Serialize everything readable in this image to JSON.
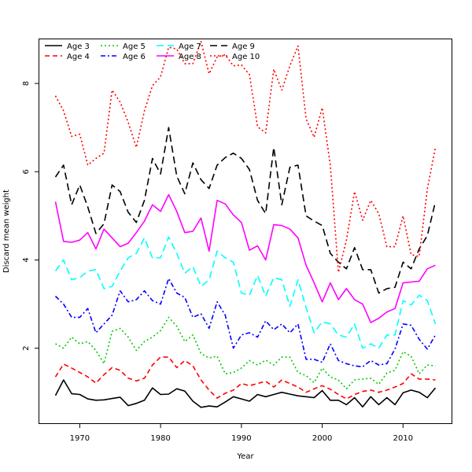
{
  "chart_data": {
    "type": "line",
    "title": "",
    "xlabel": "Year",
    "ylabel": "Discard mean weight",
    "xlim": [
      1965,
      2016
    ],
    "ylim": [
      0.3,
      9.0
    ],
    "xticks": [
      1970,
      1980,
      1990,
      2000,
      2010
    ],
    "yticks": [
      2,
      4,
      6,
      8
    ],
    "legend_position": "top-left",
    "x": [
      1967,
      1968,
      1969,
      1970,
      1971,
      1972,
      1973,
      1974,
      1975,
      1976,
      1977,
      1978,
      1979,
      1980,
      1981,
      1982,
      1983,
      1984,
      1985,
      1986,
      1987,
      1988,
      1989,
      1990,
      1991,
      1992,
      1993,
      1994,
      1995,
      1996,
      1997,
      1998,
      1999,
      2000,
      2001,
      2002,
      2003,
      2004,
      2005,
      2006,
      2007,
      2008,
      2009,
      2010,
      2011,
      2012,
      2013,
      2014
    ],
    "series": [
      {
        "name": "Age 3",
        "color": "#000000",
        "dash": "solid",
        "values": [
          0.93,
          1.28,
          0.97,
          0.95,
          0.85,
          0.82,
          0.83,
          0.86,
          0.89,
          0.7,
          0.75,
          0.82,
          1.1,
          0.95,
          0.96,
          1.08,
          1.03,
          0.8,
          0.66,
          0.69,
          0.67,
          0.78,
          0.9,
          0.85,
          0.8,
          0.95,
          0.9,
          0.95,
          1.0,
          0.96,
          0.92,
          0.9,
          0.88,
          1.04,
          0.82,
          0.82,
          0.72,
          0.88,
          0.67,
          0.9,
          0.72,
          0.88,
          0.72,
          0.99,
          1.05,
          1.0,
          0.88,
          1.1
        ]
      },
      {
        "name": "Age 4",
        "color": "#ff0000",
        "dash": "dashed",
        "values": [
          1.35,
          1.64,
          1.55,
          1.45,
          1.35,
          1.21,
          1.4,
          1.56,
          1.5,
          1.32,
          1.26,
          1.32,
          1.62,
          1.8,
          1.8,
          1.56,
          1.72,
          1.6,
          1.28,
          1.05,
          0.87,
          0.98,
          1.05,
          1.2,
          1.15,
          1.2,
          1.25,
          1.12,
          1.28,
          1.2,
          1.12,
          1.0,
          1.08,
          1.15,
          1.07,
          0.95,
          0.85,
          0.95,
          1.02,
          1.05,
          1.0,
          1.05,
          1.12,
          1.2,
          1.42,
          1.3,
          1.3,
          1.28
        ]
      },
      {
        "name": "Age 5",
        "color": "#00cc00",
        "dash": "dotted",
        "values": [
          2.1,
          2.0,
          2.25,
          2.1,
          2.15,
          1.95,
          1.65,
          2.38,
          2.45,
          2.25,
          1.95,
          2.15,
          2.25,
          2.4,
          2.7,
          2.5,
          2.15,
          2.3,
          1.88,
          1.78,
          1.82,
          1.42,
          1.45,
          1.55,
          1.72,
          1.62,
          1.73,
          1.62,
          1.8,
          1.8,
          1.45,
          1.38,
          1.22,
          1.55,
          1.35,
          1.28,
          1.08,
          1.28,
          1.3,
          1.32,
          1.18,
          1.44,
          1.5,
          1.92,
          1.82,
          1.42,
          1.62,
          1.6
        ]
      },
      {
        "name": "Age 6",
        "color": "#0000ff",
        "dash": "dashdot",
        "values": [
          3.18,
          3.0,
          2.7,
          2.7,
          2.9,
          2.35,
          2.55,
          2.75,
          3.3,
          3.05,
          3.1,
          3.3,
          3.08,
          3.0,
          3.58,
          3.25,
          3.15,
          2.7,
          2.78,
          2.45,
          3.05,
          2.75,
          2.0,
          2.3,
          2.35,
          2.25,
          2.62,
          2.42,
          2.55,
          2.35,
          2.55,
          1.75,
          1.75,
          1.68,
          2.1,
          1.72,
          1.65,
          1.6,
          1.58,
          1.72,
          1.62,
          1.65,
          1.98,
          2.55,
          2.52,
          2.2,
          1.98,
          2.3
        ]
      },
      {
        "name": "Age 7",
        "color": "#00ffff",
        "dash": "longdash",
        "values": [
          3.75,
          4.0,
          3.55,
          3.6,
          3.75,
          3.78,
          3.35,
          3.4,
          3.75,
          4.05,
          4.15,
          4.5,
          4.05,
          4.05,
          4.52,
          4.15,
          3.7,
          3.85,
          3.4,
          3.55,
          4.2,
          4.05,
          3.95,
          3.25,
          3.2,
          3.65,
          3.18,
          3.6,
          3.55,
          2.95,
          3.55,
          2.92,
          2.35,
          2.6,
          2.55,
          2.3,
          2.25,
          2.55,
          2.0,
          2.1,
          2.0,
          2.3,
          2.3,
          3.08,
          2.98,
          3.2,
          3.08,
          2.55
        ]
      },
      {
        "name": "Age 8",
        "color": "#ff00ff",
        "dash": "solid",
        "values": [
          5.32,
          4.42,
          4.4,
          4.45,
          4.62,
          4.25,
          4.7,
          4.5,
          4.3,
          4.38,
          4.62,
          4.88,
          5.25,
          5.1,
          5.48,
          5.1,
          4.62,
          4.65,
          4.95,
          4.2,
          5.35,
          5.27,
          5.02,
          4.85,
          4.22,
          4.32,
          4.0,
          4.8,
          4.78,
          4.7,
          4.5,
          3.88,
          3.48,
          3.05,
          3.48,
          3.1,
          3.35,
          3.1,
          3.0,
          2.58,
          2.68,
          2.82,
          2.9,
          3.48,
          3.5,
          3.52,
          3.8,
          3.88
        ]
      },
      {
        "name": "Age 9",
        "color": "#000000",
        "dash": "longdash",
        "values": [
          5.88,
          6.15,
          5.25,
          5.7,
          5.2,
          4.6,
          4.82,
          5.7,
          5.55,
          5.08,
          4.85,
          5.35,
          6.3,
          5.95,
          7.0,
          5.9,
          5.5,
          6.2,
          5.82,
          5.62,
          6.15,
          6.32,
          6.42,
          6.3,
          6.05,
          5.35,
          5.05,
          6.55,
          5.25,
          6.1,
          6.15,
          5.0,
          4.88,
          4.78,
          4.15,
          3.95,
          3.8,
          4.28,
          3.78,
          3.78,
          3.25,
          3.35,
          3.38,
          3.95,
          3.8,
          4.25,
          4.55,
          5.32
        ]
      },
      {
        "name": "Age 10",
        "color": "#ff0000",
        "dash": "dotted",
        "values": [
          7.72,
          7.38,
          6.8,
          6.85,
          6.15,
          6.3,
          6.42,
          7.85,
          7.58,
          7.12,
          6.55,
          7.38,
          7.95,
          8.15,
          8.82,
          8.78,
          8.45,
          8.45,
          8.95,
          8.22,
          8.6,
          8.65,
          8.4,
          8.42,
          8.2,
          7.02,
          6.88,
          8.32,
          7.85,
          8.4,
          8.85,
          7.2,
          6.78,
          7.45,
          6.15,
          3.72,
          4.45,
          5.55,
          4.9,
          5.35,
          5.05,
          4.3,
          4.3,
          5.0,
          4.12,
          4.08,
          5.6,
          6.55
        ]
      }
    ]
  }
}
